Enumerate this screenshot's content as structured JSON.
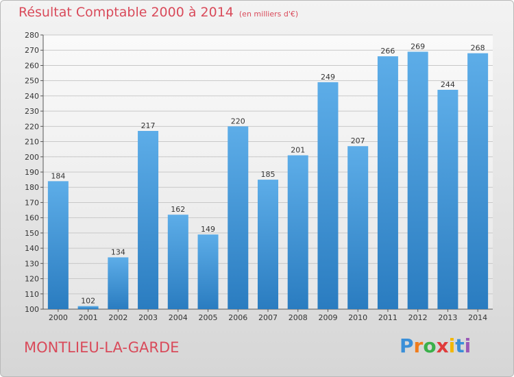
{
  "header": {
    "title": "Résultat Comptable 2000 à 2014",
    "subtitle": "(en milliers d'€)"
  },
  "footer": {
    "commune": "MONTLIEU-LA-GARDE",
    "logo": "Proxiti"
  },
  "colors": {
    "bar_light": "#5dade8",
    "bar_dark": "#2a7cc0",
    "title": "#d94a5a"
  },
  "chart_data": {
    "type": "bar",
    "title": "Résultat Comptable 2000 à 2014",
    "subtitle": "(en milliers d'€)",
    "categories": [
      "2000",
      "2001",
      "2002",
      "2003",
      "2004",
      "2005",
      "2006",
      "2007",
      "2008",
      "2009",
      "2010",
      "2011",
      "2012",
      "2013",
      "2014"
    ],
    "values": [
      184,
      102,
      134,
      217,
      162,
      149,
      220,
      185,
      201,
      249,
      207,
      266,
      269,
      244,
      268
    ],
    "ylim": [
      100,
      280
    ],
    "yticks": [
      100,
      110,
      120,
      130,
      140,
      150,
      160,
      170,
      180,
      190,
      200,
      210,
      220,
      230,
      240,
      250,
      260,
      270,
      280
    ],
    "grid": true,
    "legend": "none"
  }
}
